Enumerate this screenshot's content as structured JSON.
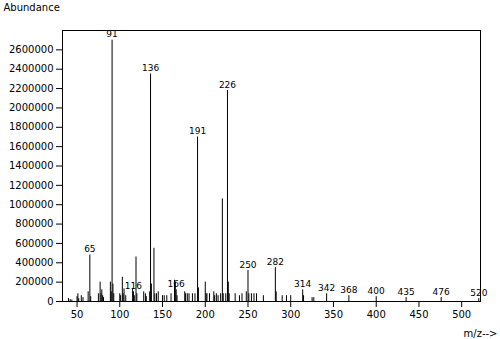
{
  "chart_data": {
    "type": "stem",
    "title": "",
    "xlabel": "m/z-->",
    "ylabel": "Abundance",
    "color": "#000000",
    "xlim": [
      33,
      522
    ],
    "ylim": [
      0,
      2800000
    ],
    "xticks": [
      50,
      100,
      150,
      200,
      250,
      300,
      350,
      400,
      450,
      500
    ],
    "yticks": [
      0,
      200000,
      400000,
      600000,
      800000,
      1000000,
      1200000,
      1400000,
      1600000,
      1800000,
      2000000,
      2200000,
      2400000,
      2600000
    ],
    "grid": false,
    "x": [
      40,
      42,
      44,
      50,
      51,
      52,
      55,
      57,
      63,
      65,
      66,
      75,
      77,
      78,
      79,
      80,
      81,
      89,
      90,
      91,
      92,
      93,
      100,
      101,
      103,
      104,
      105,
      107,
      115,
      116,
      117,
      119,
      120,
      128,
      130,
      131,
      135,
      136,
      137,
      140,
      141,
      143,
      145,
      150,
      152,
      155,
      160,
      164,
      165,
      166,
      167,
      176,
      177,
      179,
      181,
      185,
      188,
      191,
      192,
      200,
      201,
      202,
      205,
      210,
      211,
      213,
      215,
      218,
      220,
      221,
      224,
      226,
      227,
      228,
      235,
      240,
      243,
      248,
      250,
      251,
      254,
      257,
      260,
      268,
      282,
      283,
      290,
      295,
      300,
      314,
      315,
      325,
      327,
      342,
      368,
      400,
      435,
      476,
      520
    ],
    "values": [
      30000,
      20000,
      15000,
      50000,
      80000,
      30000,
      60000,
      40000,
      100000,
      480000,
      50000,
      80000,
      200000,
      80000,
      120000,
      60000,
      40000,
      200000,
      100000,
      2700000,
      180000,
      80000,
      80000,
      60000,
      250000,
      80000,
      130000,
      60000,
      130000,
      100000,
      60000,
      460000,
      80000,
      100000,
      80000,
      50000,
      100000,
      2350000,
      180000,
      550000,
      80000,
      80000,
      100000,
      60000,
      60000,
      60000,
      80000,
      220000,
      200000,
      120000,
      60000,
      100000,
      80000,
      80000,
      80000,
      80000,
      80000,
      1700000,
      140000,
      200000,
      80000,
      80000,
      80000,
      100000,
      60000,
      80000,
      60000,
      80000,
      1060000,
      80000,
      80000,
      2180000,
      200000,
      80000,
      80000,
      60000,
      80000,
      100000,
      320000,
      80000,
      80000,
      80000,
      80000,
      60000,
      350000,
      100000,
      60000,
      60000,
      60000,
      120000,
      60000,
      40000,
      40000,
      80000,
      60000,
      50000,
      40000,
      40000,
      30000
    ],
    "annotations": [
      {
        "x": 65,
        "y": 480000,
        "text": "65"
      },
      {
        "x": 91,
        "y": 2700000,
        "text": "91"
      },
      {
        "x": 116,
        "y": 100000,
        "text": "116"
      },
      {
        "x": 136,
        "y": 2350000,
        "text": "136"
      },
      {
        "x": 166,
        "y": 120000,
        "text": "166"
      },
      {
        "x": 191,
        "y": 1700000,
        "text": "191"
      },
      {
        "x": 226,
        "y": 2180000,
        "text": "226"
      },
      {
        "x": 250,
        "y": 320000,
        "text": "250"
      },
      {
        "x": 282,
        "y": 350000,
        "text": "282"
      },
      {
        "x": 314,
        "y": 120000,
        "text": "314"
      },
      {
        "x": 342,
        "y": 80000,
        "text": "342"
      },
      {
        "x": 368,
        "y": 60000,
        "text": "368"
      },
      {
        "x": 400,
        "y": 50000,
        "text": "400"
      },
      {
        "x": 435,
        "y": 40000,
        "text": "435"
      },
      {
        "x": 476,
        "y": 40000,
        "text": "476"
      },
      {
        "x": 520,
        "y": 30000,
        "text": "520"
      }
    ]
  }
}
